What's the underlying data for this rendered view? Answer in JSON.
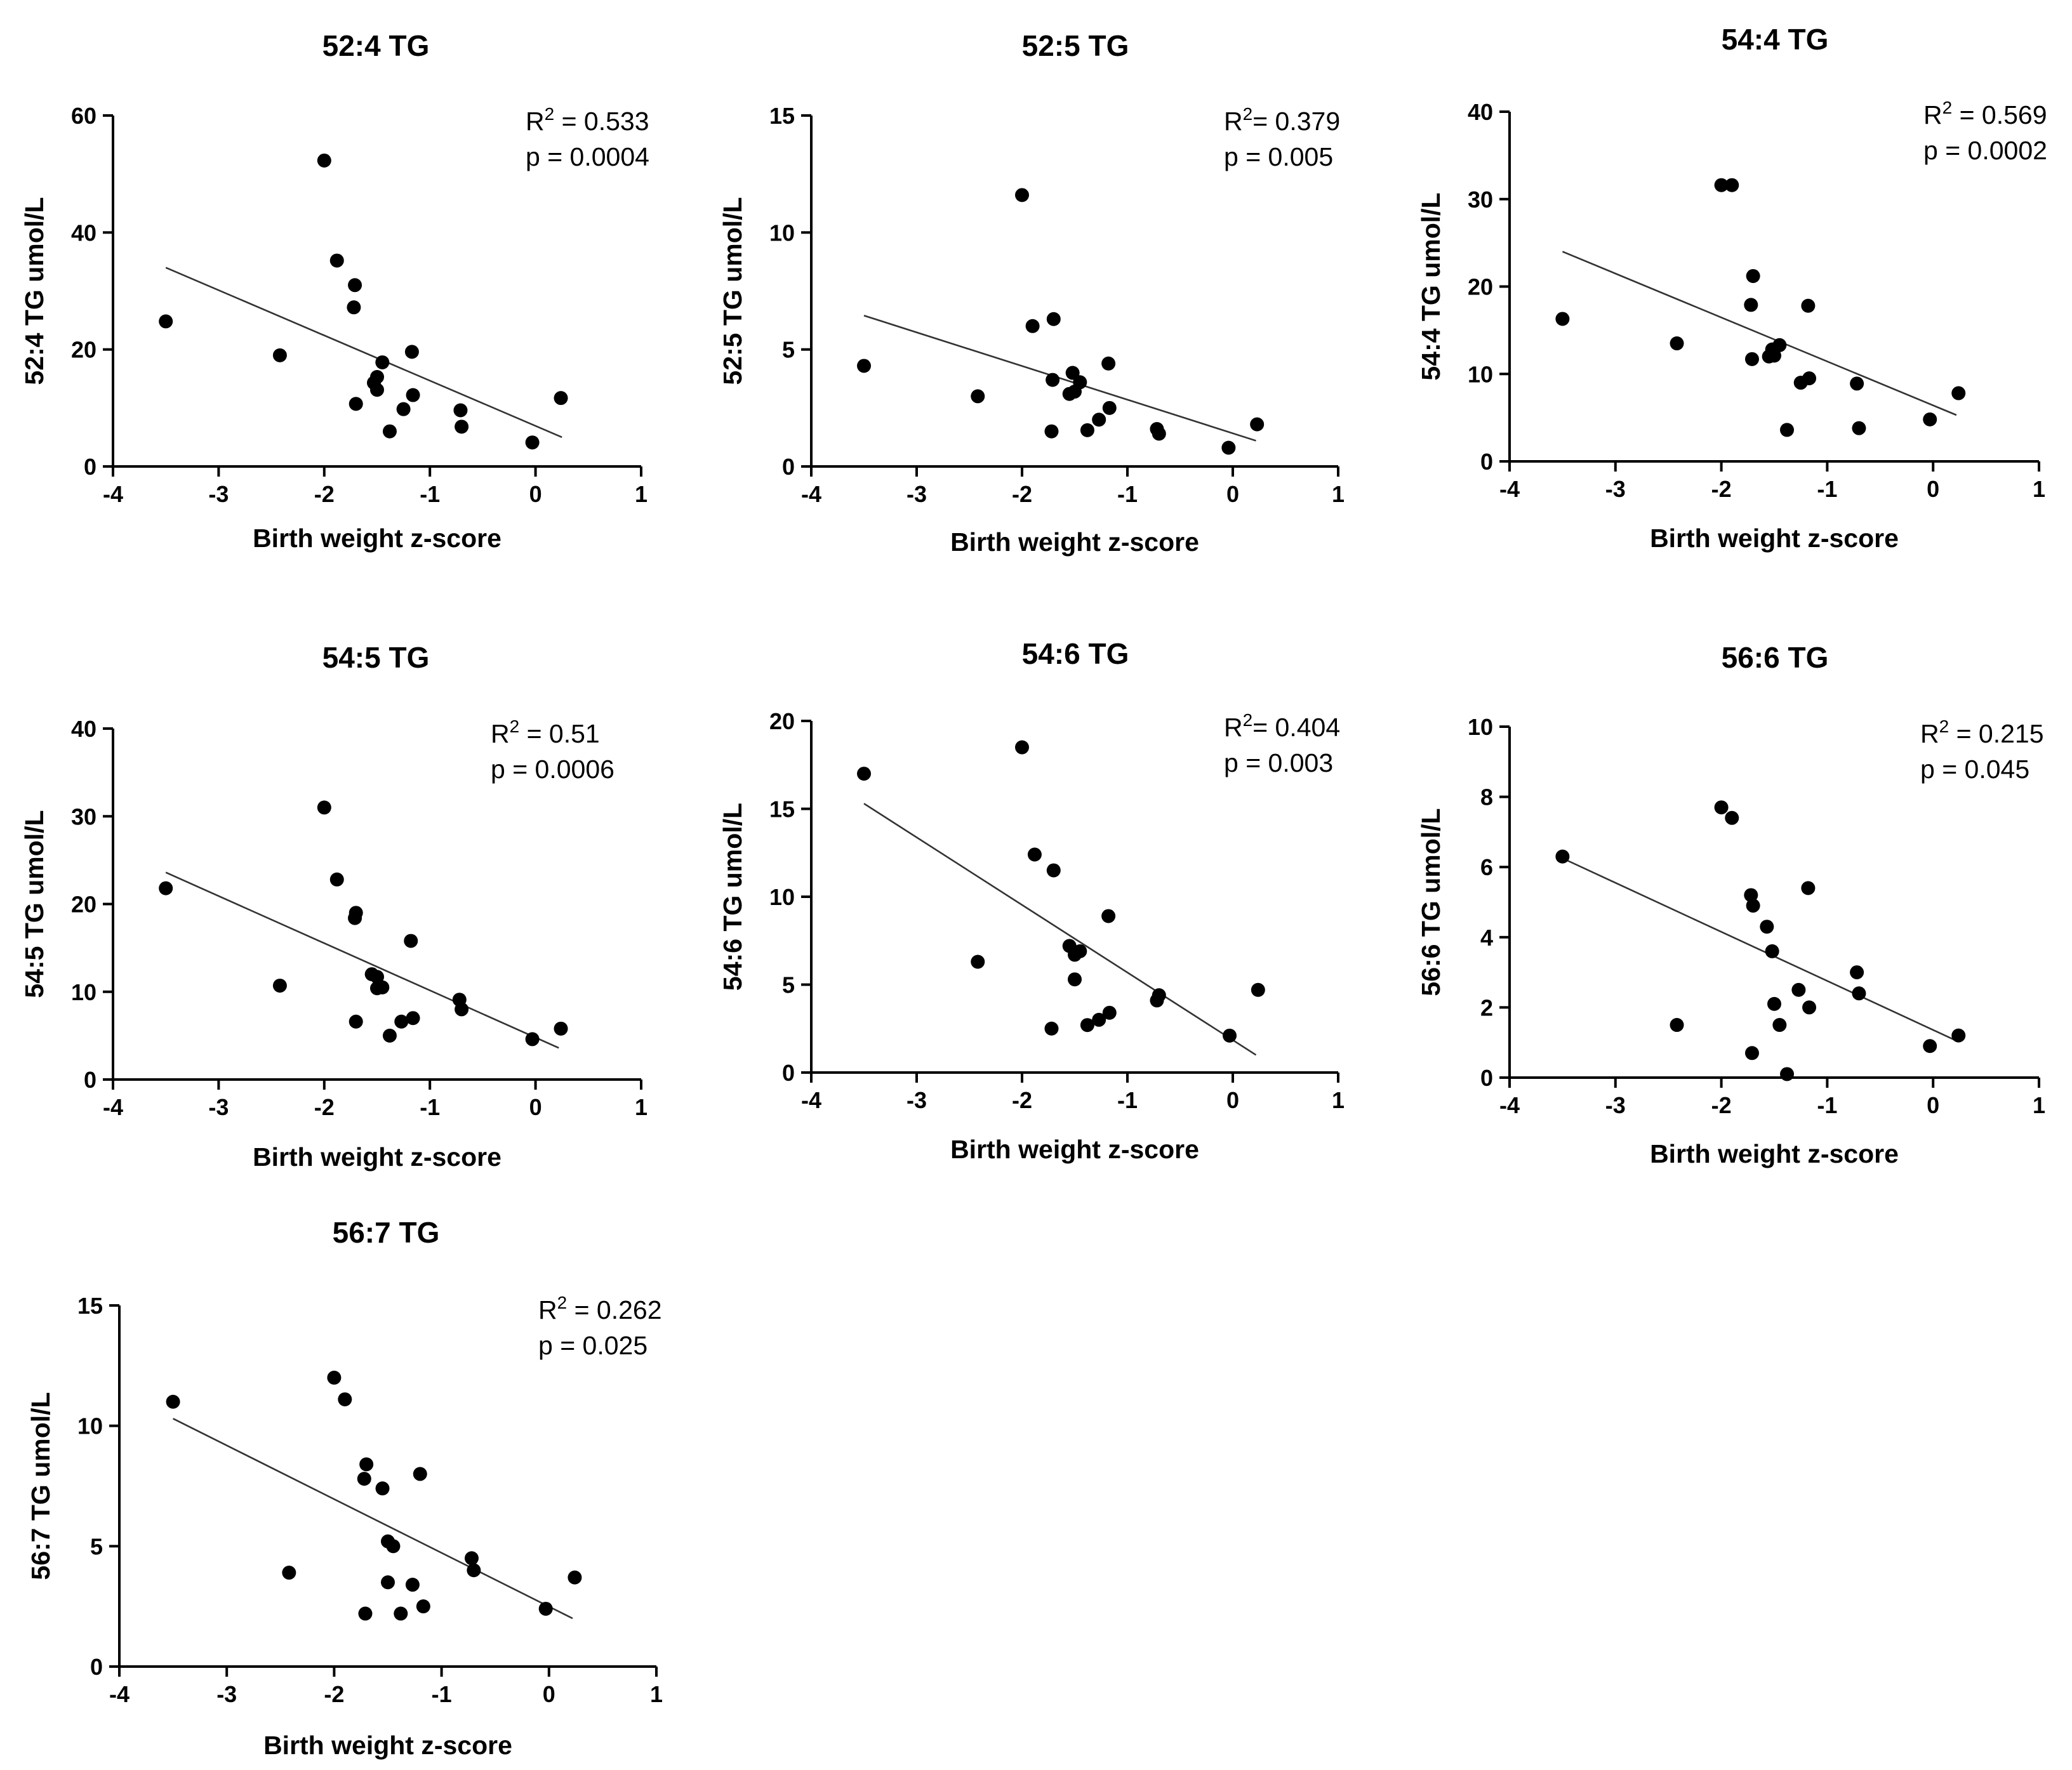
{
  "chart_data": [
    {
      "type": "scatter",
      "title": "52:4 TG",
      "xlabel": "Birth weight z-score",
      "ylabel": "52:4 TG umol/L",
      "xlim": [
        -4,
        1
      ],
      "ylim": [
        0,
        60
      ],
      "xticks": [
        "-4",
        "-3",
        "-2",
        "-1",
        "0",
        "1"
      ],
      "yticks": [
        "0",
        "20",
        "40",
        "60"
      ],
      "r2_label": "R",
      "r2_value": " = 0.533",
      "p_text": "p = 0.0004",
      "fit": {
        "x": [
          -3.5,
          0.25
        ],
        "y": [
          34.0,
          5.0
        ]
      },
      "points": [
        {
          "x": -3.5,
          "y": 24.8
        },
        {
          "x": -2.42,
          "y": 19.0
        },
        {
          "x": -2.0,
          "y": 52.3
        },
        {
          "x": -1.88,
          "y": 35.2
        },
        {
          "x": -1.71,
          "y": 31.0
        },
        {
          "x": -1.72,
          "y": 27.2
        },
        {
          "x": -1.7,
          "y": 10.7
        },
        {
          "x": -1.53,
          "y": 14.3
        },
        {
          "x": -1.5,
          "y": 13.1
        },
        {
          "x": -1.5,
          "y": 15.3
        },
        {
          "x": -1.45,
          "y": 17.8
        },
        {
          "x": -1.38,
          "y": 6.0
        },
        {
          "x": -1.25,
          "y": 9.8
        },
        {
          "x": -1.17,
          "y": 19.6
        },
        {
          "x": -1.16,
          "y": 12.2
        },
        {
          "x": -0.71,
          "y": 9.6
        },
        {
          "x": -0.7,
          "y": 6.8
        },
        {
          "x": -0.03,
          "y": 4.1
        },
        {
          "x": 0.24,
          "y": 11.7
        }
      ]
    },
    {
      "type": "scatter",
      "title": "52:5 TG",
      "xlabel": "Birth weight z-score",
      "ylabel": "52:5 TG umol/L",
      "xlim": [
        -4,
        1
      ],
      "ylim": [
        0,
        15
      ],
      "xticks": [
        "-4",
        "-3",
        "-2",
        "-1",
        "0",
        "1"
      ],
      "yticks": [
        "0",
        "5",
        "10",
        "15"
      ],
      "r2_label": "R",
      "r2_value": "= 0.379",
      "p_text": "p = 0.005",
      "fit": {
        "x": [
          -3.5,
          0.22
        ],
        "y": [
          6.45,
          1.1
        ]
      },
      "points": [
        {
          "x": -3.5,
          "y": 4.3
        },
        {
          "x": -2.42,
          "y": 3.0
        },
        {
          "x": -2.0,
          "y": 11.6
        },
        {
          "x": -1.9,
          "y": 6.0
        },
        {
          "x": -1.7,
          "y": 6.3
        },
        {
          "x": -1.71,
          "y": 3.7
        },
        {
          "x": -1.72,
          "y": 1.5
        },
        {
          "x": -1.55,
          "y": 3.1
        },
        {
          "x": -1.52,
          "y": 4.0
        },
        {
          "x": -1.5,
          "y": 3.2
        },
        {
          "x": -1.45,
          "y": 3.6
        },
        {
          "x": -1.38,
          "y": 1.55
        },
        {
          "x": -1.27,
          "y": 2.0
        },
        {
          "x": -1.18,
          "y": 4.4
        },
        {
          "x": -1.17,
          "y": 2.5
        },
        {
          "x": -0.72,
          "y": 1.6
        },
        {
          "x": -0.7,
          "y": 1.4
        },
        {
          "x": -0.04,
          "y": 0.8
        },
        {
          "x": 0.23,
          "y": 1.8
        }
      ]
    },
    {
      "type": "scatter",
      "title": "54:4 TG",
      "xlabel": "Birth weight z-score",
      "ylabel": "54:4 TG umol/L",
      "xlim": [
        -4,
        1
      ],
      "ylim": [
        0,
        40
      ],
      "xticks": [
        "-4",
        "-3",
        "-2",
        "-1",
        "0",
        "1"
      ],
      "yticks": [
        "0",
        "10",
        "20",
        "30",
        "40"
      ],
      "r2_label": "R",
      "r2_value": " = 0.569",
      "p_text": "p = 0.0002",
      "fit": {
        "x": [
          -3.5,
          0.22
        ],
        "y": [
          24.0,
          5.3
        ]
      },
      "points": [
        {
          "x": -3.5,
          "y": 16.3
        },
        {
          "x": -2.42,
          "y": 13.5
        },
        {
          "x": -2.0,
          "y": 31.6
        },
        {
          "x": -1.9,
          "y": 31.6
        },
        {
          "x": -1.7,
          "y": 21.2
        },
        {
          "x": -1.72,
          "y": 17.9
        },
        {
          "x": -1.71,
          "y": 11.7
        },
        {
          "x": -1.55,
          "y": 12.0
        },
        {
          "x": -1.52,
          "y": 12.8
        },
        {
          "x": -1.5,
          "y": 12.1
        },
        {
          "x": -1.45,
          "y": 13.3
        },
        {
          "x": -1.38,
          "y": 3.6
        },
        {
          "x": -1.25,
          "y": 9.0
        },
        {
          "x": -1.18,
          "y": 17.8
        },
        {
          "x": -1.17,
          "y": 9.5
        },
        {
          "x": -0.72,
          "y": 8.9
        },
        {
          "x": -0.7,
          "y": 3.8
        },
        {
          "x": -0.03,
          "y": 4.8
        },
        {
          "x": 0.24,
          "y": 7.8
        }
      ]
    },
    {
      "type": "scatter",
      "title": "54:5 TG",
      "xlabel": "Birth weight z-score",
      "ylabel": "54:5 TG umol/L",
      "xlim": [
        -4,
        1
      ],
      "ylim": [
        0,
        40
      ],
      "xticks": [
        "-4",
        "-3",
        "-2",
        "-1",
        "0",
        "1"
      ],
      "yticks": [
        "0",
        "10",
        "20",
        "30",
        "40"
      ],
      "r2_label": "R",
      "r2_value": " = 0.51",
      "p_text": "p = 0.0006",
      "fit": {
        "x": [
          -3.5,
          0.22
        ],
        "y": [
          23.6,
          3.6
        ]
      },
      "points": [
        {
          "x": -3.5,
          "y": 21.8
        },
        {
          "x": -2.42,
          "y": 10.7
        },
        {
          "x": -2.0,
          "y": 31.0
        },
        {
          "x": -1.88,
          "y": 22.8
        },
        {
          "x": -1.7,
          "y": 19.0
        },
        {
          "x": -1.71,
          "y": 18.4
        },
        {
          "x": -1.7,
          "y": 6.6
        },
        {
          "x": -1.55,
          "y": 12.0
        },
        {
          "x": -1.5,
          "y": 11.7
        },
        {
          "x": -1.5,
          "y": 10.4
        },
        {
          "x": -1.45,
          "y": 10.5
        },
        {
          "x": -1.38,
          "y": 5.0
        },
        {
          "x": -1.27,
          "y": 6.6
        },
        {
          "x": -1.18,
          "y": 15.8
        },
        {
          "x": -1.16,
          "y": 7.0
        },
        {
          "x": -0.72,
          "y": 9.1
        },
        {
          "x": -0.7,
          "y": 8.0
        },
        {
          "x": -0.03,
          "y": 4.6
        },
        {
          "x": 0.24,
          "y": 5.8
        }
      ]
    },
    {
      "type": "scatter",
      "title": "54:6 TG",
      "xlabel": "Birth weight z-score",
      "ylabel": "54:6 TG umol/L",
      "xlim": [
        -4,
        1
      ],
      "ylim": [
        0,
        20
      ],
      "xticks": [
        "-4",
        "-3",
        "-2",
        "-1",
        "0",
        "1"
      ],
      "yticks": [
        "0",
        "5",
        "10",
        "15",
        "20"
      ],
      "r2_label": "R",
      "r2_value": "= 0.404",
      "p_text": "p = 0.003",
      "fit": {
        "x": [
          -3.5,
          0.22
        ],
        "y": [
          15.3,
          1.0
        ]
      },
      "points": [
        {
          "x": -3.5,
          "y": 17.0
        },
        {
          "x": -2.42,
          "y": 6.3
        },
        {
          "x": -2.0,
          "y": 18.5
        },
        {
          "x": -1.88,
          "y": 12.4
        },
        {
          "x": -1.7,
          "y": 11.5
        },
        {
          "x": -1.72,
          "y": 2.5
        },
        {
          "x": -1.55,
          "y": 7.2
        },
        {
          "x": -1.5,
          "y": 6.7
        },
        {
          "x": -1.5,
          "y": 5.3
        },
        {
          "x": -1.45,
          "y": 6.9
        },
        {
          "x": -1.38,
          "y": 2.7
        },
        {
          "x": -1.27,
          "y": 3.0
        },
        {
          "x": -1.18,
          "y": 8.9
        },
        {
          "x": -1.17,
          "y": 3.4
        },
        {
          "x": -0.72,
          "y": 4.1
        },
        {
          "x": -0.7,
          "y": 4.4
        },
        {
          "x": -0.03,
          "y": 2.1
        },
        {
          "x": 0.24,
          "y": 4.7
        }
      ]
    },
    {
      "type": "scatter",
      "title": "56:6 TG",
      "xlabel": "Birth weight z-score",
      "ylabel": "56:6 TG umol/L",
      "xlim": [
        -4,
        1
      ],
      "ylim": [
        0,
        10
      ],
      "xticks": [
        "-4",
        "-3",
        "-2",
        "-1",
        "0",
        "1"
      ],
      "yticks": [
        "0",
        "2",
        "4",
        "6",
        "8",
        "10"
      ],
      "r2_label": "R",
      "r2_value": " = 0.215",
      "p_text": "p = 0.045",
      "fit": {
        "x": [
          -3.5,
          0.22
        ],
        "y": [
          6.25,
          1.05
        ]
      },
      "points": [
        {
          "x": -3.5,
          "y": 6.3
        },
        {
          "x": -2.42,
          "y": 1.5
        },
        {
          "x": -2.0,
          "y": 7.7
        },
        {
          "x": -1.9,
          "y": 7.4
        },
        {
          "x": -1.72,
          "y": 5.2
        },
        {
          "x": -1.7,
          "y": 4.9
        },
        {
          "x": -1.71,
          "y": 0.7
        },
        {
          "x": -1.57,
          "y": 4.3
        },
        {
          "x": -1.52,
          "y": 3.6
        },
        {
          "x": -1.5,
          "y": 2.1
        },
        {
          "x": -1.45,
          "y": 1.5
        },
        {
          "x": -1.38,
          "y": 0.1
        },
        {
          "x": -1.27,
          "y": 2.5
        },
        {
          "x": -1.18,
          "y": 5.4
        },
        {
          "x": -1.17,
          "y": 2.0
        },
        {
          "x": -0.72,
          "y": 3.0
        },
        {
          "x": -0.7,
          "y": 2.4
        },
        {
          "x": -0.03,
          "y": 0.9
        },
        {
          "x": 0.24,
          "y": 1.2
        }
      ]
    },
    {
      "type": "scatter",
      "title": "56:7 TG",
      "xlabel": "Birth weight z-score",
      "ylabel": "56:7 TG umol/L",
      "xlim": [
        -4,
        1
      ],
      "ylim": [
        0,
        15
      ],
      "xticks": [
        "-4",
        "-3",
        "-2",
        "-1",
        "0",
        "1"
      ],
      "yticks": [
        "0",
        "5",
        "10",
        "15"
      ],
      "r2_label": "R",
      "r2_value": " = 0.262",
      "p_text": "p = 0.025",
      "fit": {
        "x": [
          -3.5,
          0.22
        ],
        "y": [
          10.3,
          2.0
        ]
      },
      "points": [
        {
          "x": -3.5,
          "y": 11.0
        },
        {
          "x": -2.42,
          "y": 3.9
        },
        {
          "x": -2.0,
          "y": 12.0
        },
        {
          "x": -1.9,
          "y": 11.1
        },
        {
          "x": -1.72,
          "y": 7.8
        },
        {
          "x": -1.7,
          "y": 8.4
        },
        {
          "x": -1.71,
          "y": 2.2
        },
        {
          "x": -1.55,
          "y": 7.4
        },
        {
          "x": -1.5,
          "y": 5.2
        },
        {
          "x": -1.5,
          "y": 3.5
        },
        {
          "x": -1.45,
          "y": 5.0
        },
        {
          "x": -1.38,
          "y": 2.2
        },
        {
          "x": -1.27,
          "y": 3.4
        },
        {
          "x": -1.2,
          "y": 8.0
        },
        {
          "x": -1.17,
          "y": 2.5
        },
        {
          "x": -0.72,
          "y": 4.5
        },
        {
          "x": -0.7,
          "y": 4.0
        },
        {
          "x": -0.03,
          "y": 2.4
        },
        {
          "x": 0.24,
          "y": 3.7
        }
      ]
    }
  ]
}
